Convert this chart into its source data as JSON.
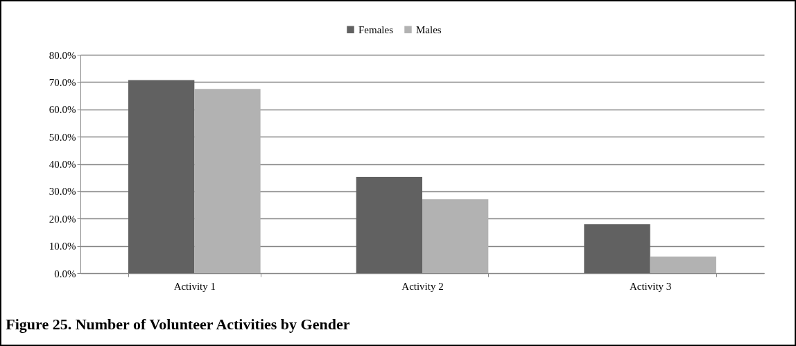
{
  "chart_data": {
    "type": "bar",
    "title": "Figure 25. Number of Volunteer Activities by Gender",
    "categories": [
      "Activity 1",
      "Activity 2",
      "Activity 3"
    ],
    "series": [
      {
        "name": "Females",
        "color": "#616161",
        "values": [
          70.7,
          35.3,
          18.0
        ]
      },
      {
        "name": "Males",
        "color": "#b2b2b2",
        "values": [
          67.5,
          27.1,
          6.1
        ]
      }
    ],
    "ylim": [
      0,
      80
    ],
    "yticks": [
      {
        "value": 0,
        "label": "0.0%"
      },
      {
        "value": 10,
        "label": "10.0%"
      },
      {
        "value": 20,
        "label": "20.0%"
      },
      {
        "value": 30,
        "label": "30.0%"
      },
      {
        "value": 40,
        "label": "40.0%"
      },
      {
        "value": 50,
        "label": "50.0%"
      },
      {
        "value": 60,
        "label": "60.0%"
      },
      {
        "value": 70,
        "label": "70.0%"
      },
      {
        "value": 80,
        "label": "80.0%"
      }
    ],
    "grid": "y",
    "legend": "top"
  }
}
